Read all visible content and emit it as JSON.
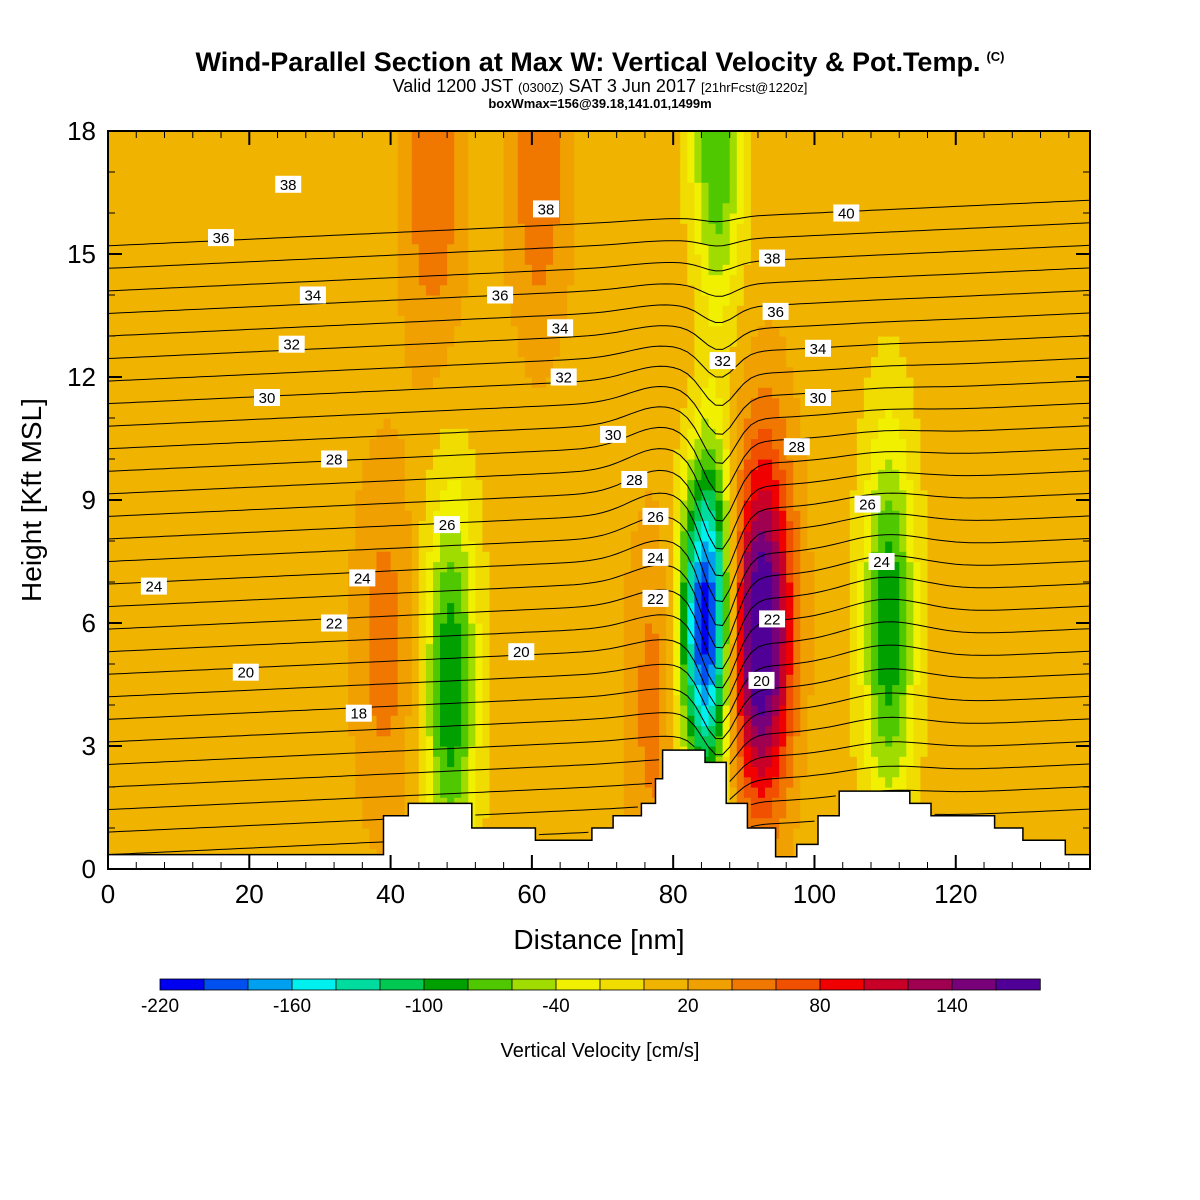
{
  "header": {
    "title": "Wind-Parallel Section at Max W: Vertical Velocity & Pot.Temp.",
    "copyright": "(C)",
    "valid_prefix": "Valid 1200 JST",
    "utc": "(0300Z)",
    "valid_date": "SAT 3 Jun 2017",
    "forecast_info": "[21hrFcst@1220z]",
    "box_info": "boxWmax=156@39.18,141.01,1499m"
  },
  "colors": {
    "background_field": "#fbbf00",
    "terrain": "#ffffff",
    "contour_line": "#000000",
    "colorbar": [
      "#0000f0",
      "#0050f0",
      "#00a0f0",
      "#00f0f0",
      "#00dca0",
      "#00c850",
      "#00a000",
      "#50c800",
      "#a0dc00",
      "#f0f000",
      "#f0dc00",
      "#f0b400",
      "#f0a000",
      "#f07800",
      "#f05000",
      "#f00000",
      "#c80028",
      "#a00050",
      "#780078",
      "#500096"
    ]
  },
  "colorbar": {
    "labels": [
      "-220",
      "-160",
      "-100",
      "-40",
      "20",
      "80",
      "140"
    ],
    "title": "Vertical Velocity [cm/s]"
  },
  "chart_data": {
    "type": "heatmap",
    "title": "Wind-Parallel Section at Max W: Vertical Velocity & Pot.Temp.",
    "xlabel": "Distance [nm]",
    "ylabel": "Height [Kft MSL]",
    "xlim": [
      0,
      139
    ],
    "ylim": [
      0,
      18
    ],
    "xticks": [
      "0",
      "20",
      "40",
      "60",
      "80",
      "100",
      "120"
    ],
    "yticks": [
      "0",
      "3",
      "6",
      "9",
      "12",
      "15",
      "18"
    ],
    "field": "Vertical Velocity [cm/s]",
    "field_levels": [
      -220,
      -200,
      -180,
      -160,
      -140,
      -120,
      -100,
      -80,
      -60,
      -40,
      -20,
      0,
      20,
      40,
      60,
      80,
      100,
      120,
      140,
      160
    ],
    "velocity_features": [
      {
        "x": 84.5,
        "y": 5.5,
        "value": -150
      },
      {
        "x": 85,
        "y": 8.0,
        "value": -90
      },
      {
        "x": 86,
        "y": 17.0,
        "value": -90
      },
      {
        "x": 48.5,
        "y": 4.5,
        "value": -100
      },
      {
        "x": 110.5,
        "y": 6.0,
        "value": -100
      },
      {
        "x": 92,
        "y": 5.3,
        "value": 140
      },
      {
        "x": 93,
        "y": 7.0,
        "value": 80
      },
      {
        "x": 85,
        "y": 12.0,
        "value": 60
      },
      {
        "x": 39,
        "y": 5.5,
        "value": 50
      },
      {
        "x": 46,
        "y": 17.0,
        "value": 60
      },
      {
        "x": 61,
        "y": 17.5,
        "value": 60
      },
      {
        "x": 77.5,
        "y": 4.0,
        "value": 50
      }
    ],
    "contour_field": "Potential Temperature [C]",
    "contour_labels": [
      {
        "text": "38",
        "x": 25.5,
        "y": 16.7
      },
      {
        "text": "36",
        "x": 16.0,
        "y": 15.4
      },
      {
        "text": "34",
        "x": 29.0,
        "y": 14.0
      },
      {
        "text": "32",
        "x": 26.0,
        "y": 12.8
      },
      {
        "text": "30",
        "x": 22.5,
        "y": 11.5
      },
      {
        "text": "28",
        "x": 32.0,
        "y": 10.0
      },
      {
        "text": "26",
        "x": 48.0,
        "y": 8.4
      },
      {
        "text": "24",
        "x": 6.5,
        "y": 6.9
      },
      {
        "text": "24",
        "x": 36.0,
        "y": 7.1
      },
      {
        "text": "22",
        "x": 32.0,
        "y": 6.0
      },
      {
        "text": "20",
        "x": 19.5,
        "y": 4.8
      },
      {
        "text": "20",
        "x": 58.5,
        "y": 5.3
      },
      {
        "text": "18",
        "x": 35.5,
        "y": 3.8
      },
      {
        "text": "38",
        "x": 62.0,
        "y": 16.1
      },
      {
        "text": "36",
        "x": 55.5,
        "y": 14.0
      },
      {
        "text": "34",
        "x": 64.0,
        "y": 13.2
      },
      {
        "text": "32",
        "x": 64.5,
        "y": 12.0
      },
      {
        "text": "30",
        "x": 71.5,
        "y": 10.6
      },
      {
        "text": "28",
        "x": 74.5,
        "y": 9.5
      },
      {
        "text": "26",
        "x": 77.5,
        "y": 8.6
      },
      {
        "text": "24",
        "x": 77.5,
        "y": 7.6
      },
      {
        "text": "22",
        "x": 77.5,
        "y": 6.6
      },
      {
        "text": "22",
        "x": 94.0,
        "y": 6.1
      },
      {
        "text": "20",
        "x": 92.5,
        "y": 4.6
      },
      {
        "text": "32",
        "x": 87.0,
        "y": 12.4
      },
      {
        "text": "40",
        "x": 104.5,
        "y": 16.0
      },
      {
        "text": "38",
        "x": 94.0,
        "y": 14.9
      },
      {
        "text": "36",
        "x": 94.5,
        "y": 13.6
      },
      {
        "text": "34",
        "x": 100.5,
        "y": 12.7
      },
      {
        "text": "30",
        "x": 100.5,
        "y": 11.5
      },
      {
        "text": "28",
        "x": 97.5,
        "y": 10.3
      },
      {
        "text": "26",
        "x": 107.5,
        "y": 8.9
      },
      {
        "text": "24",
        "x": 109.5,
        "y": 7.5
      }
    ],
    "terrain": [
      [
        0,
        0.35
      ],
      [
        39,
        0.35
      ],
      [
        39,
        1.3
      ],
      [
        42.5,
        1.3
      ],
      [
        42.5,
        1.6
      ],
      [
        51.5,
        1.6
      ],
      [
        51.5,
        1.0
      ],
      [
        60.5,
        1.0
      ],
      [
        60.5,
        0.7
      ],
      [
        68.5,
        0.7
      ],
      [
        68.5,
        1.0
      ],
      [
        71.5,
        1.0
      ],
      [
        71.5,
        1.3
      ],
      [
        75.5,
        1.3
      ],
      [
        75.5,
        1.6
      ],
      [
        77.5,
        1.6
      ],
      [
        77.5,
        2.2
      ],
      [
        78.5,
        2.2
      ],
      [
        78.5,
        2.9
      ],
      [
        84.5,
        2.9
      ],
      [
        84.5,
        2.6
      ],
      [
        87.5,
        2.6
      ],
      [
        87.5,
        1.6
      ],
      [
        90.5,
        1.6
      ],
      [
        90.5,
        1.0
      ],
      [
        94.5,
        1.0
      ],
      [
        94.5,
        0.3
      ],
      [
        97.5,
        0.3
      ],
      [
        97.5,
        0.6
      ],
      [
        100.5,
        0.6
      ],
      [
        100.5,
        1.3
      ],
      [
        103.5,
        1.3
      ],
      [
        103.5,
        1.9
      ],
      [
        113.5,
        1.9
      ],
      [
        113.5,
        1.6
      ],
      [
        116.5,
        1.6
      ],
      [
        116.5,
        1.3
      ],
      [
        125.5,
        1.3
      ],
      [
        125.5,
        1.0
      ],
      [
        129.5,
        1.0
      ],
      [
        129.5,
        0.7
      ],
      [
        135.5,
        0.7
      ],
      [
        135.5,
        0.35
      ],
      [
        139,
        0.35
      ]
    ]
  }
}
